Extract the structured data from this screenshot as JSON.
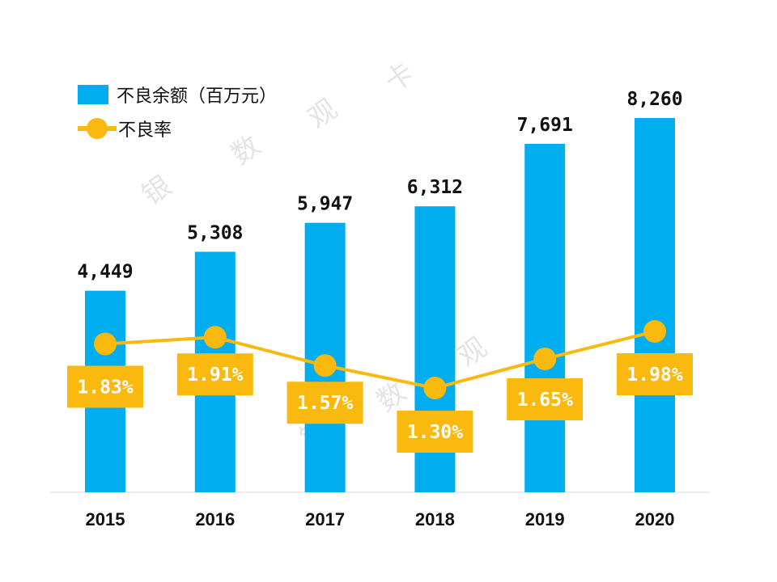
{
  "chart_data": {
    "type": "bar+line",
    "categories": [
      "2015",
      "2016",
      "2017",
      "2018",
      "2019",
      "2020"
    ],
    "series": [
      {
        "name": "不良余额（百万元）",
        "type": "bar",
        "values": [
          4449,
          5308,
          5947,
          6312,
          7691,
          8260
        ],
        "labels": [
          "4,449",
          "5,308",
          "5,947",
          "6,312",
          "7,691",
          "8,260"
        ],
        "color": "#00AEEF"
      },
      {
        "name": "不良率",
        "type": "line",
        "values": [
          1.83,
          1.91,
          1.57,
          1.3,
          1.65,
          1.98
        ],
        "labels": [
          "1.83%",
          "1.91%",
          "1.57%",
          "1.30%",
          "1.65%",
          "1.98%"
        ],
        "color": "#F9B90F"
      }
    ],
    "legend_position": "top-left",
    "grid": false,
    "watermark": [
      "银",
      "数",
      "观",
      "卡"
    ]
  }
}
